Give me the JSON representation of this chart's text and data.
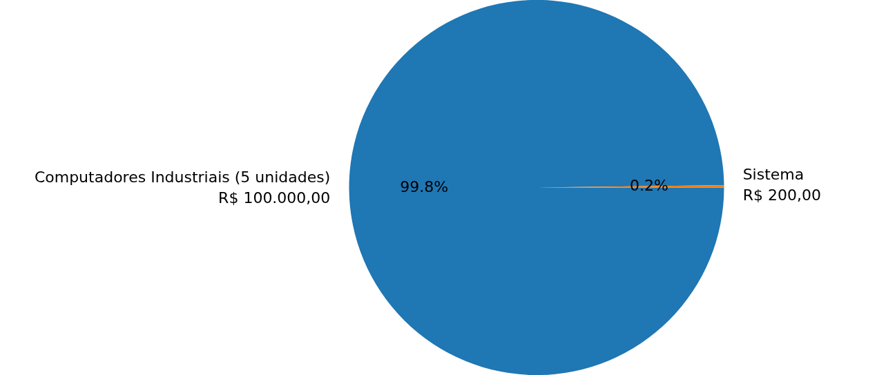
{
  "chart_data": {
    "type": "pie",
    "categories": [
      "Computadores Industriais (5 unidades)",
      "Sistema"
    ],
    "values": [
      100000,
      200
    ],
    "value_labels": [
      "R$ 100.000,00",
      "R$ 200,00"
    ],
    "colors": [
      "#1f77b4",
      "#ff7f0e"
    ],
    "annotations": [
      {
        "text": "99.8%",
        "x": "Computadores Industriais (5 unidades)"
      },
      {
        "text": "0.2%",
        "x": "Sistema"
      }
    ],
    "legend": false
  }
}
